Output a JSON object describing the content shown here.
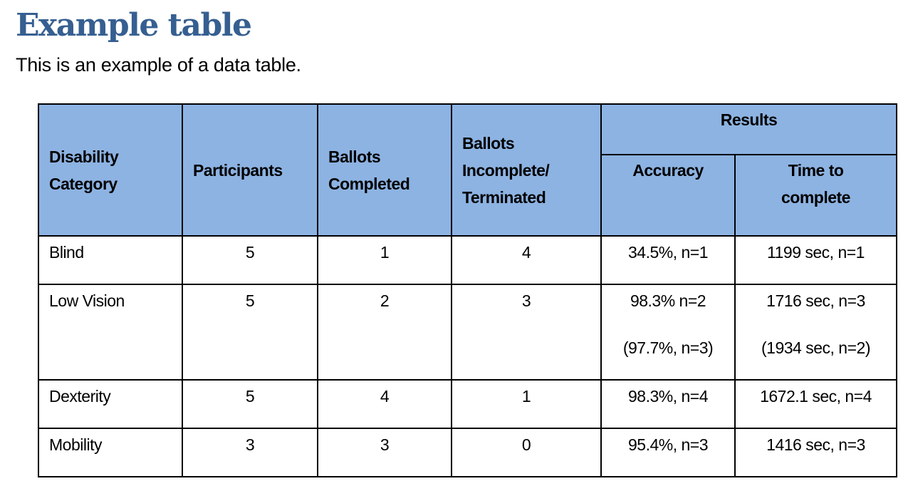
{
  "title": "Example table",
  "subtitle": "This is an example of a data table.",
  "colors": {
    "title": "#365F91",
    "header_bg": "#8DB3E2"
  },
  "table": {
    "headers": {
      "category": "Disability Category",
      "participants": "Participants",
      "completed": "Ballots Completed",
      "incomplete": "Ballots Incomplete/ Terminated",
      "results": "Results",
      "accuracy": "Accuracy",
      "time": "Time to complete"
    },
    "rows": [
      {
        "category": "Blind",
        "participants": "5",
        "completed": "1",
        "incomplete": "4",
        "accuracy": "34.5%, n=1",
        "accuracy2": "",
        "time": "1199 sec, n=1",
        "time2": ""
      },
      {
        "category": "Low Vision",
        "participants": "5",
        "completed": "2",
        "incomplete": "3",
        "accuracy": "98.3% n=2",
        "accuracy2": "(97.7%, n=3)",
        "time": "1716 sec, n=3",
        "time2": "(1934 sec, n=2)"
      },
      {
        "category": "Dexterity",
        "participants": "5",
        "completed": "4",
        "incomplete": "1",
        "accuracy": "98.3%, n=4",
        "accuracy2": "",
        "time": "1672.1 sec, n=4",
        "time2": ""
      },
      {
        "category": "Mobility",
        "participants": "3",
        "completed": "3",
        "incomplete": "0",
        "accuracy": "95.4%, n=3",
        "accuracy2": "",
        "time": "1416 sec, n=3",
        "time2": ""
      }
    ]
  }
}
